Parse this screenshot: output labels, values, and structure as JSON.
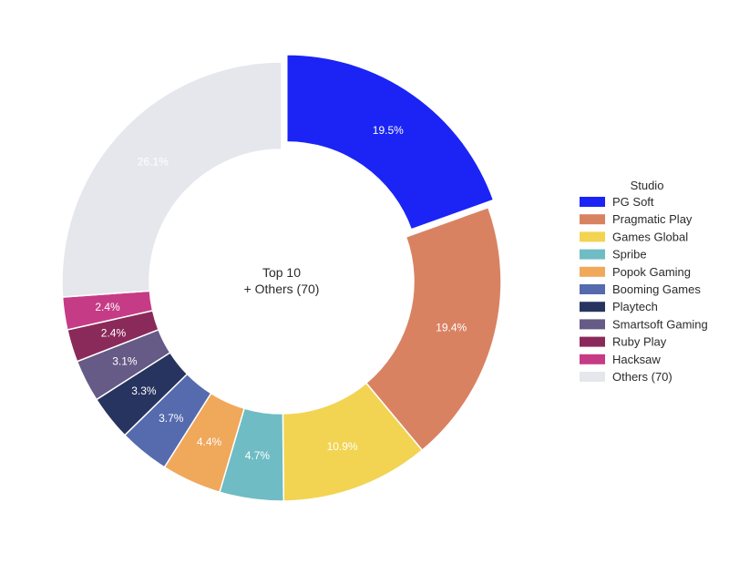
{
  "chart_data": {
    "type": "pie",
    "donut": true,
    "center_label": [
      "Top 10",
      "+ Others (70)"
    ],
    "legend_title": "Studio",
    "legend_position": "right",
    "slices": [
      {
        "name": "PG Soft",
        "value": 19.5,
        "label": "19.5%",
        "color": "#1b24f5",
        "exploded": true
      },
      {
        "name": "Pragmatic Play",
        "value": 19.4,
        "label": "19.4%",
        "color": "#d98262"
      },
      {
        "name": "Games Global",
        "value": 10.9,
        "label": "10.9%",
        "color": "#f2d452"
      },
      {
        "name": "Spribe",
        "value": 4.7,
        "label": "4.7%",
        "color": "#6fbcc4"
      },
      {
        "name": "Popok Gaming",
        "value": 4.4,
        "label": "4.4%",
        "color": "#f0a85a"
      },
      {
        "name": "Booming Games",
        "value": 3.7,
        "label": "3.7%",
        "color": "#566aae"
      },
      {
        "name": "Playtech",
        "value": 3.3,
        "label": "3.3%",
        "color": "#27345f"
      },
      {
        "name": "Smartsoft Gaming",
        "value": 3.1,
        "label": "3.1%",
        "color": "#665a86"
      },
      {
        "name": "Ruby Play",
        "value": 2.4,
        "label": "2.4%",
        "color": "#8a2a5a"
      },
      {
        "name": "Hacksaw",
        "value": 2.4,
        "label": "2.4%",
        "color": "#c63b86"
      },
      {
        "name": "Others (70)",
        "value": 26.1,
        "label": "26.1%",
        "color": "#e6e7ec"
      }
    ]
  }
}
